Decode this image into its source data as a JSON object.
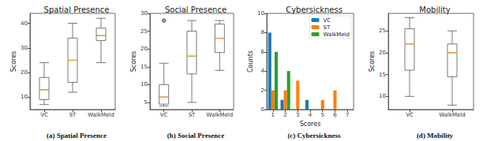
{
  "chart_data": [
    {
      "type": "boxplot",
      "title": "Spatial Presence",
      "caption": "(a) Spatial Presence",
      "ylabel": "Scores",
      "categories": [
        "VC",
        "ST",
        "WalkMeld"
      ],
      "values": [
        [
          7,
          9,
          13,
          18,
          24
        ],
        [
          12,
          16,
          25,
          34,
          40
        ],
        [
          24,
          33,
          35,
          38,
          42
        ]
      ],
      "outliers": [
        [],
        [],
        []
      ],
      "ylim": [
        5,
        44
      ],
      "yticks": [
        10,
        20,
        30,
        40
      ],
      "grid": false
    },
    {
      "type": "boxplot",
      "title": "Social Presence",
      "caption": "(b) Social Presence",
      "ylabel": "Scores",
      "categories": [
        "VC",
        "ST",
        "WalkMeld"
      ],
      "values": [
        [
          4,
          4.5,
          6.5,
          10,
          16
        ],
        [
          5,
          13,
          18,
          25,
          28
        ],
        [
          14,
          19,
          23,
          27,
          28
        ]
      ],
      "outliers": [
        [
          28
        ],
        [],
        []
      ],
      "ylim": [
        3,
        30
      ],
      "yticks": [
        5,
        10,
        15,
        20,
        25,
        30
      ],
      "grid": false
    },
    {
      "type": "bar",
      "title": "Cybersickness",
      "caption": "(c) Cybersickness",
      "xlabel": "Scores",
      "ylabel": "Counts",
      "categories": [
        1,
        2,
        3,
        4,
        5,
        6,
        7
      ],
      "series": [
        {
          "name": "VC",
          "color": "#1f77b4",
          "values": [
            8,
            1,
            0,
            1,
            0,
            0,
            0
          ]
        },
        {
          "name": "ST",
          "color": "#ff7f0e",
          "values": [
            2,
            2,
            3,
            0,
            1,
            2,
            0
          ]
        },
        {
          "name": "WalkMeld",
          "color": "#2ca02c",
          "values": [
            6,
            4,
            0,
            0,
            0,
            0,
            0
          ]
        }
      ],
      "ylim": [
        0,
        10
      ],
      "yticks": [
        0,
        2,
        4,
        6,
        8,
        10
      ],
      "legend": "upper right",
      "grid": false
    },
    {
      "type": "boxplot",
      "title": "Mobility",
      "caption": "(d) Mobility",
      "ylabel": "Scores",
      "categories": [
        "VC",
        "WalkMeld"
      ],
      "values": [
        [
          10,
          16,
          22,
          25.5,
          28
        ],
        [
          8,
          14.5,
          20,
          22,
          25
        ]
      ],
      "outliers": [
        [],
        []
      ],
      "ylim": [
        7,
        29
      ],
      "yticks": [
        10,
        15,
        20,
        25
      ],
      "grid": false
    }
  ]
}
